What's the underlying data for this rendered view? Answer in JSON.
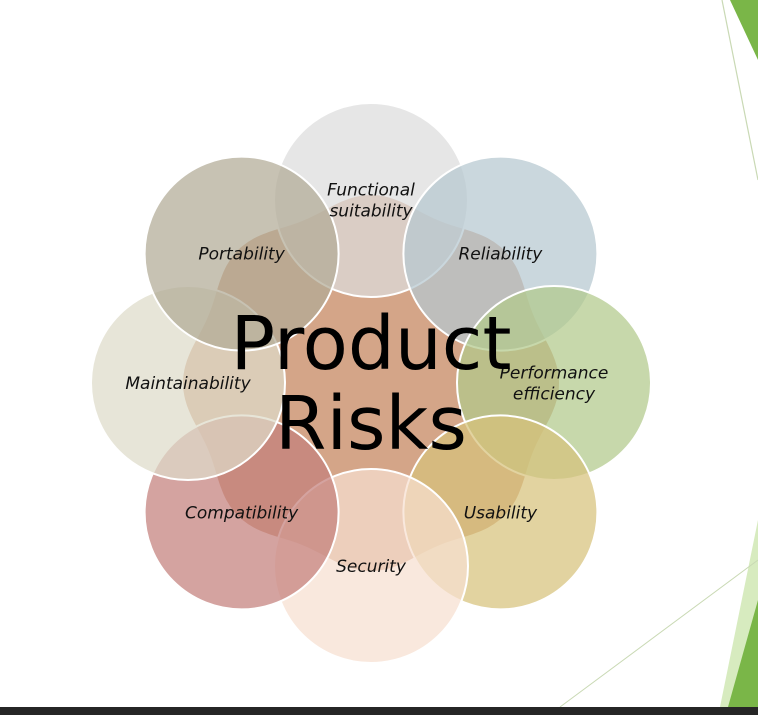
{
  "diagram": {
    "center": {
      "lines": [
        "Product",
        "Risks"
      ],
      "color": "#d4a588"
    },
    "petals": [
      {
        "id": "functional-suitability",
        "lines": [
          "Functional",
          "suitability"
        ],
        "color": "#dcdcdc"
      },
      {
        "id": "reliability",
        "lines": [
          "Reliability"
        ],
        "color": "#b5c8d0"
      },
      {
        "id": "performance-efficiency",
        "lines": [
          "Performance",
          "efficiency"
        ],
        "color": "#b2c98a"
      },
      {
        "id": "usability",
        "lines": [
          "Usability"
        ],
        "color": "#d7c27c"
      },
      {
        "id": "security",
        "lines": [
          "Security"
        ],
        "color": "#f7dfd0"
      },
      {
        "id": "compatibility",
        "lines": [
          "Compatibility"
        ],
        "color": "#c3807c"
      },
      {
        "id": "maintainability",
        "lines": [
          "Maintainability"
        ],
        "color": "#dedbc9"
      },
      {
        "id": "portability",
        "lines": [
          "Portability"
        ],
        "color": "#b1aa96"
      }
    ]
  },
  "decor": {
    "accent_green": "#7ab648",
    "accent_light_green": "#d7ebbf",
    "bar_color": "#262626"
  }
}
